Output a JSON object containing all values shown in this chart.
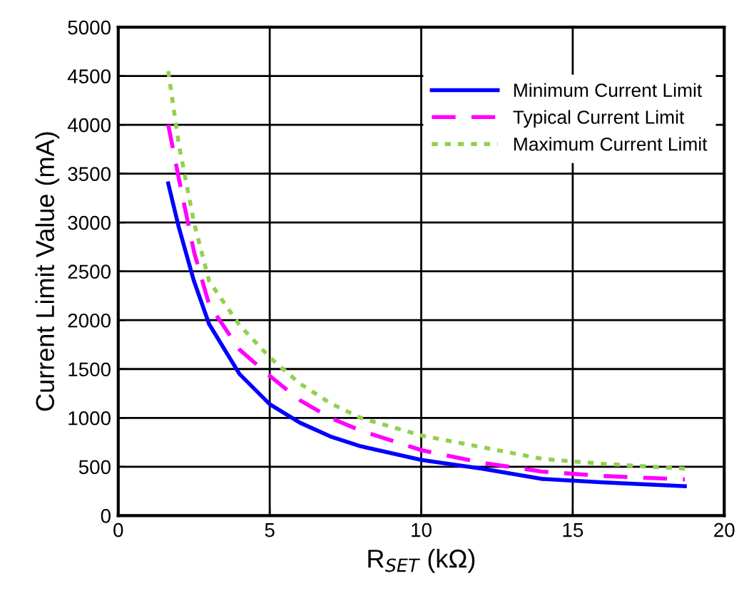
{
  "chart_data": {
    "type": "line",
    "xlabel": "R$_{SET}$ (kΩ)",
    "ylabel": "Current Limit Value (mA)",
    "x": [
      1.65,
      2,
      2.5,
      3,
      4,
      5,
      6,
      7,
      8,
      10,
      12,
      14,
      16,
      18.7
    ],
    "series": [
      {
        "name": "Minimum Current Limit",
        "color": "#0000ff",
        "line_style": "solid",
        "values": [
          3400,
          2950,
          2400,
          1960,
          1450,
          1140,
          950,
          810,
          710,
          570,
          480,
          375,
          340,
          300
        ]
      },
      {
        "name": "Typical Current Limit",
        "color": "#ff00ff",
        "line_style": "dashed",
        "values": [
          4000,
          3450,
          2700,
          2160,
          1700,
          1430,
          1180,
          1000,
          870,
          670,
          540,
          450,
          405,
          370
        ]
      },
      {
        "name": "Maximum Current Limit",
        "color": "#92d050",
        "line_style": "dotted",
        "values": [
          4550,
          3800,
          3000,
          2400,
          1950,
          1620,
          1350,
          1150,
          1000,
          820,
          700,
          580,
          530,
          480
        ]
      }
    ],
    "xlim": [
      0,
      20
    ],
    "xticks": [
      0,
      5,
      10,
      15,
      20
    ],
    "ylim": [
      0,
      5000
    ],
    "yticks": [
      0,
      500,
      1000,
      1500,
      2000,
      2500,
      3000,
      3500,
      4000,
      4500,
      5000
    ],
    "grid": true,
    "legend": "top right",
    "marker": "none"
  }
}
